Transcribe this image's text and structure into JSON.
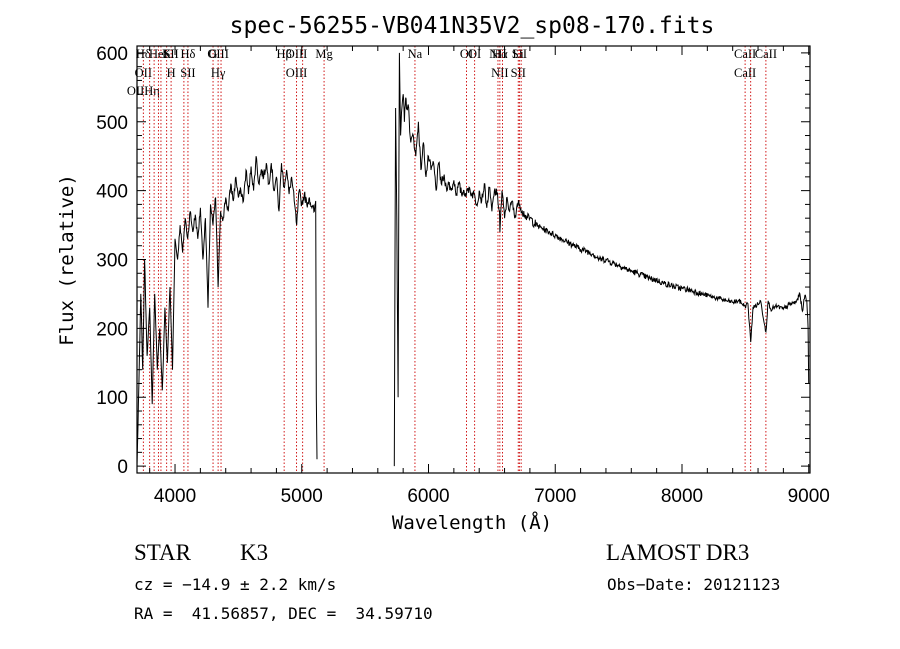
{
  "chart_data": {
    "type": "line",
    "title": "spec-56255-VB041N35V2_sp08-170.fits",
    "xlabel": "Wavelength (Å)",
    "ylabel": "Flux (relative)",
    "xlim": [
      3700,
      9010
    ],
    "ylim": [
      -10,
      610
    ],
    "xticks": [
      4000,
      5000,
      6000,
      7000,
      8000,
      9000
    ],
    "yticks": [
      0,
      100,
      200,
      300,
      400,
      500,
      600
    ],
    "xtick_labels": [
      "4000",
      "5000",
      "6000",
      "7000",
      "8000",
      "9000"
    ],
    "ytick_labels": [
      "0",
      "100",
      "200",
      "300",
      "400",
      "500",
      "600"
    ],
    "grid": false,
    "series": [
      {
        "segments": [
          {
            "x": [
              3700,
              3715,
              3730,
              3745,
              3760,
              3780,
              3800,
              3820,
              3840,
              3860,
              3880,
              3900,
              3920,
              3940,
              3960,
              3980,
              4000,
              4020,
              4040,
              4060,
              4080,
              4100,
              4120,
              4140,
              4160,
              4180,
              4200,
              4220,
              4240,
              4260,
              4280,
              4300,
              4320,
              4340,
              4360,
              4380,
              4400,
              4420,
              4440,
              4460,
              4480,
              4500,
              4520,
              4540,
              4560,
              4580,
              4600,
              4620,
              4640,
              4660,
              4680,
              4700,
              4720,
              4740,
              4760,
              4780,
              4800,
              4820,
              4840,
              4860,
              4880,
              4900,
              4920,
              4940,
              4960,
              4980,
              5000,
              5020,
              5040,
              5060,
              5080,
              5100,
              5110,
              5115,
              5120
            ],
            "y": [
              0,
              120,
              250,
              140,
              300,
              160,
              230,
              90,
              250,
              140,
              200,
              110,
              230,
              150,
              260,
              140,
              330,
              300,
              350,
              310,
              360,
              330,
              370,
              340,
              365,
              330,
              375,
              300,
              360,
              230,
              380,
              350,
              390,
              260,
              370,
              360,
              390,
              370,
              410,
              385,
              420,
              390,
              400,
              385,
              430,
              395,
              435,
              400,
              450,
              410,
              430,
              420,
              440,
              410,
              440,
              400,
              420,
              370,
              440,
              405,
              430,
              395,
              420,
              385,
              350,
              400,
              380,
              395,
              380,
              390,
              375,
              370,
              385,
              100,
              10
            ]
          },
          {
            "x": [
              5730,
              5740,
              5750,
              5760,
              5770,
              5780,
              5790,
              5800,
              5810,
              5820,
              5830,
              5840,
              5860,
              5880,
              5900,
              5920,
              5940,
              5960,
              5980,
              6000,
              6020,
              6040,
              6060,
              6080,
              6100,
              6120,
              6140,
              6160,
              6180,
              6200,
              6220,
              6240,
              6260,
              6280,
              6300,
              6320,
              6340,
              6360,
              6380,
              6400,
              6420,
              6440,
              6460,
              6480,
              6500,
              6520,
              6540,
              6560,
              6563,
              6580,
              6600,
              6620,
              6640,
              6660,
              6680,
              6700,
              6720,
              6740,
              6760,
              6780,
              6800,
              6850,
              6900,
              6950,
              7000,
              7050,
              7100,
              7150,
              7200,
              7250,
              7300,
              7350,
              7400,
              7450,
              7500,
              7550,
              7600,
              7650,
              7700,
              7750,
              7800,
              7850,
              7900,
              7950,
              8000,
              8050,
              8100,
              8150,
              8200,
              8250,
              8300,
              8350,
              8400,
              8450,
              8498,
              8520,
              8542,
              8560,
              8600,
              8620,
              8662,
              8680,
              8700,
              8750,
              8800,
              8850,
              8900,
              8930,
              8950,
              8970,
              8985,
              8995,
              9000
            ],
            "y": [
              0,
              520,
              360,
              100,
              600,
              480,
              520,
              540,
              500,
              535,
              520,
              525,
              470,
              480,
              450,
              500,
              430,
              470,
              420,
              450,
              430,
              440,
              400,
              440,
              410,
              420,
              405,
              410,
              400,
              415,
              395,
              410,
              395,
              400,
              395,
              405,
              395,
              395,
              380,
              400,
              385,
              410,
              375,
              405,
              370,
              400,
              395,
              370,
              340,
              400,
              360,
              390,
              370,
              385,
              360,
              380,
              380,
              370,
              365,
              360,
              360,
              350,
              345,
              340,
              335,
              330,
              325,
              320,
              315,
              312,
              308,
              300,
              300,
              295,
              292,
              287,
              283,
              280,
              276,
              272,
              270,
              266,
              263,
              260,
              258,
              256,
              254,
              250,
              248,
              245,
              243,
              240,
              238,
              240,
              232,
              236,
              180,
              230,
              235,
              240,
              195,
              240,
              228,
              232,
              228,
              235,
              238,
              250,
              225,
              248,
              240,
              200,
              120
            ]
          }
        ]
      }
    ],
    "lines": [
      {
        "x": 3750,
        "labels": [
          "Hδ",
          "OII",
          "OIIHη"
        ]
      },
      {
        "x": 3800,
        "labels": []
      },
      {
        "x": 3835,
        "labels": []
      },
      {
        "x": 3869,
        "labels": [
          "HeI"
        ]
      },
      {
        "x": 3889,
        "labels": []
      },
      {
        "x": 3934,
        "labels": [
          "K"
        ]
      },
      {
        "x": 3969,
        "labels": [
          "SII",
          "H"
        ]
      },
      {
        "x": 4070,
        "labels": []
      },
      {
        "x": 4102,
        "labels": [
          "Hδ",
          "SII"
        ]
      },
      {
        "x": 4300,
        "labels": [
          "G"
        ]
      },
      {
        "x": 4340,
        "labels": [
          "OIII",
          "Hγ"
        ]
      },
      {
        "x": 4363,
        "labels": []
      },
      {
        "x": 4861,
        "labels": [
          "Hβ"
        ]
      },
      {
        "x": 4959,
        "labels": [
          "OIII",
          "OIII"
        ]
      },
      {
        "x": 5007,
        "labels": []
      },
      {
        "x": 5176,
        "labels": [
          "Mg"
        ]
      },
      {
        "x": 5893,
        "labels": [
          "Na"
        ]
      },
      {
        "x": 6300,
        "labels": [
          "OI"
        ]
      },
      {
        "x": 6364,
        "labels": [
          "OI"
        ]
      },
      {
        "x": 6548,
        "labels": [
          "NII"
        ]
      },
      {
        "x": 6563,
        "labels": [
          "Hα",
          "NII"
        ]
      },
      {
        "x": 6584,
        "labels": []
      },
      {
        "x": 6708,
        "labels": [
          "Li",
          "SII"
        ]
      },
      {
        "x": 6717,
        "labels": [
          "SII"
        ]
      },
      {
        "x": 6731,
        "labels": []
      },
      {
        "x": 8498,
        "labels": [
          "CaII",
          "CaII"
        ]
      },
      {
        "x": 8542,
        "labels": []
      },
      {
        "x": 8662,
        "labels": [
          "CaII"
        ]
      }
    ],
    "colors": {
      "spectrum": "#000000",
      "lines": "#cc0000",
      "axes": "#000000"
    }
  },
  "info": {
    "class": "STAR",
    "subclass": "K3",
    "survey": "LAMOST DR3",
    "redshift": "cz = −14.9 ± 2.2 km/s",
    "obs_date": "Obs−Date: 20121123",
    "coords": "RA =  41.56857, DEC =  34.59710"
  }
}
